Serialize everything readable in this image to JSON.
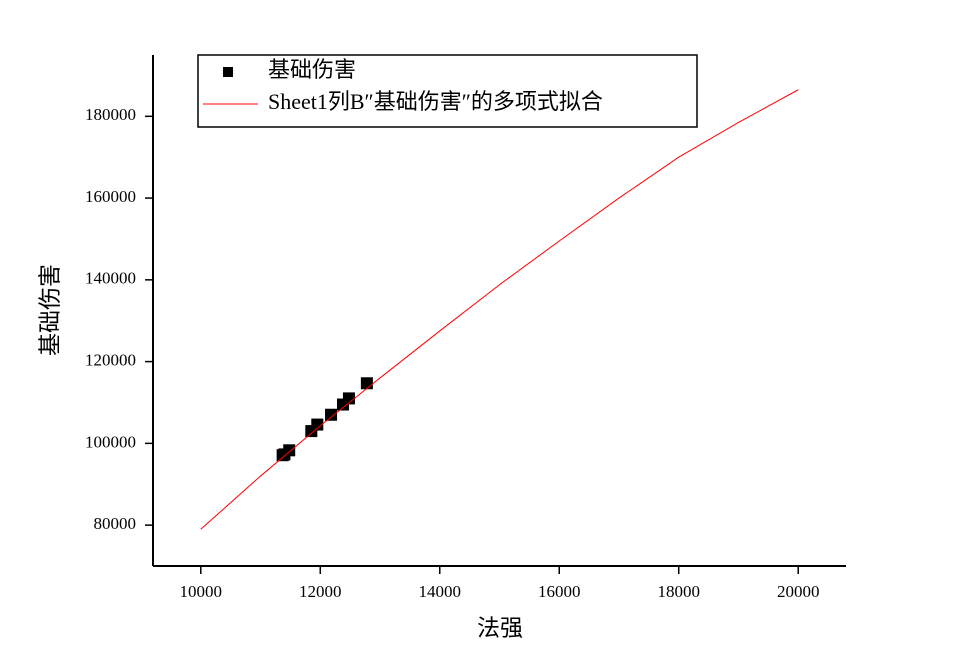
{
  "chart_data": {
    "type": "scatter",
    "x_label": "法强",
    "y_label": "基础伤害",
    "xlim": [
      9200,
      20800
    ],
    "ylim": [
      70000,
      195000
    ],
    "xticks": [
      10000,
      12000,
      14000,
      16000,
      18000,
      20000
    ],
    "yticks": [
      80000,
      100000,
      120000,
      140000,
      160000,
      180000
    ],
    "grid": false,
    "legend": "top-left",
    "series": [
      {
        "name": "基础伤害",
        "type": "scatter",
        "color": "#000000",
        "x": [
          11370,
          11400,
          11480,
          11850,
          11950,
          12180,
          12380,
          12480,
          12780
        ],
        "values": [
          97100,
          97300,
          98300,
          103000,
          104600,
          107000,
          109500,
          111000,
          114700
        ]
      },
      {
        "name": "Sheet1列B″基础伤害″的多项式拟合",
        "type": "line",
        "color": "#ff0000",
        "x": [
          10000,
          11000,
          12000,
          13000,
          14000,
          15000,
          16000,
          17000,
          18000,
          19000,
          20000
        ],
        "values": [
          79000,
          92000,
          104300,
          116000,
          127500,
          138800,
          149500,
          160000,
          170000,
          178500,
          186500
        ]
      }
    ]
  }
}
